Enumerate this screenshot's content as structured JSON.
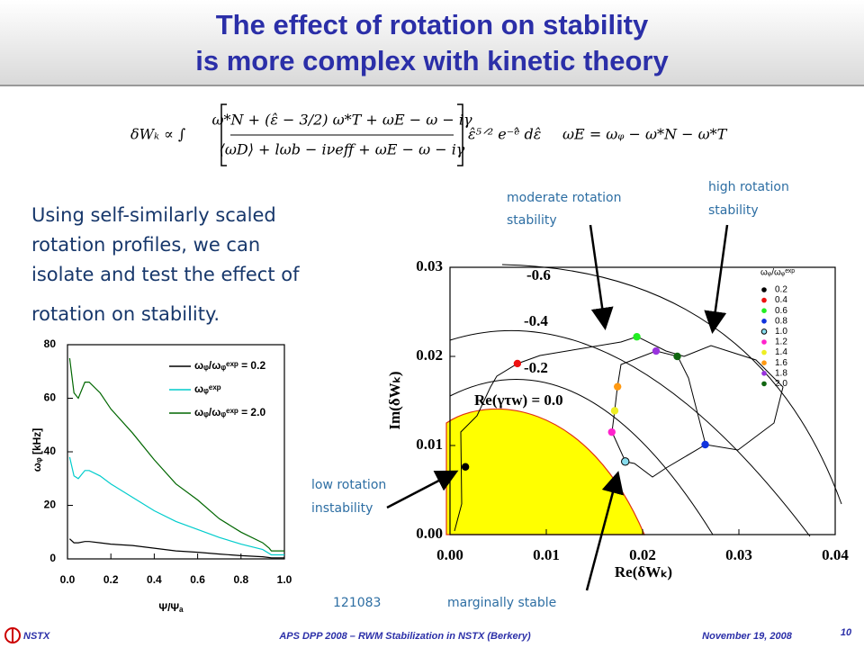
{
  "header": {
    "title_lines": [
      "The effect of rotation on stability",
      "is more complex with kinetic theory"
    ]
  },
  "equations": {
    "lhs": "δWₖ ∝ ∫",
    "numerator": "ω*N + (ε̂ − 3/2) ω*T + ωE − ω − iγ",
    "denominator": "⟨ωD⟩ + lωb − iνeff + ωE − ω − iγ",
    "tail": "ε̂⁵ᐟ² e⁻ᵉ̂ dε̂",
    "second": "ωE = ωᵩ − ω*N − ω*T"
  },
  "body_lines": [
    "Using self-similarly scaled",
    "rotation profiles, we can",
    "isolate and test the effect of",
    "rotation on stability."
  ],
  "annotations": {
    "moderate": [
      "moderate rotation",
      "stability"
    ],
    "high": [
      "high rotation",
      "stability"
    ],
    "low": [
      "low rotation",
      "instability"
    ],
    "marginal": "marginally stable",
    "shot": "121083"
  },
  "footer": {
    "logo": "NSTX",
    "center": "APS DPP 2008 – RWM Stabilization in NSTX (Berkery)",
    "date": "November 19, 2008",
    "page": "10"
  },
  "chart_data": [
    {
      "type": "line",
      "xlabel": "Ψ/Ψₐ",
      "ylabel": "ωᵩ [kHz]",
      "xlim": [
        0,
        1
      ],
      "ylim": [
        0,
        80
      ],
      "xticks": [
        {
          "value": 0,
          "label": "0.0"
        },
        0.2,
        0.4,
        0.6,
        0.8,
        {
          "value": 1,
          "label": "1.0"
        }
      ],
      "yticks": [
        0,
        20,
        40,
        60,
        80
      ],
      "series": [
        {
          "name": "ωᵩ/ωᵩᵉˣᵖ = 0.2",
          "color": "#000000",
          "x": [
            0.01,
            0.03,
            0.05,
            0.08,
            0.1,
            0.15,
            0.2,
            0.3,
            0.4,
            0.5,
            0.6,
            0.7,
            0.8,
            0.9,
            0.93,
            0.94,
            1.0
          ],
          "values": [
            7.5,
            6,
            6,
            6.5,
            6.5,
            6,
            5.5,
            5,
            4,
            3,
            2.5,
            1.8,
            1.2,
            0.8,
            0.5,
            0.4,
            0.4
          ]
        },
        {
          "name": "ωᵩᵉˣᵖ",
          "color": "#00cccc",
          "x": [
            0.01,
            0.03,
            0.05,
            0.08,
            0.1,
            0.15,
            0.2,
            0.3,
            0.4,
            0.5,
            0.6,
            0.7,
            0.8,
            0.9,
            0.93,
            0.94,
            1.0
          ],
          "values": [
            38,
            31,
            30,
            33,
            33,
            31,
            28,
            23,
            18,
            14,
            11,
            8,
            5.5,
            3.5,
            2,
            1.5,
            1.5
          ]
        },
        {
          "name": "ωᵩ/ωᵩᵉˣᵖ = 2.0",
          "color": "#006600",
          "x": [
            0.01,
            0.03,
            0.05,
            0.08,
            0.1,
            0.15,
            0.2,
            0.3,
            0.4,
            0.5,
            0.6,
            0.7,
            0.8,
            0.9,
            0.93,
            0.94,
            1.0
          ],
          "values": [
            75,
            62,
            60,
            66,
            66,
            62,
            56,
            47,
            37,
            28,
            22,
            15,
            10,
            6,
            4,
            3,
            3
          ]
        }
      ]
    },
    {
      "type": "scatter",
      "xlabel": "Re(δWₖ)",
      "ylabel": "Im(δWₖ)",
      "xlim": [
        0,
        0.04
      ],
      "ylim": [
        0,
        0.03
      ],
      "xticks": [
        {
          "value": 0,
          "label": "0.00"
        },
        0.01,
        0.02,
        0.03,
        0.04
      ],
      "yticks": [
        {
          "value": 0,
          "label": "0.00"
        },
        0.01,
        0.02,
        0.03
      ],
      "contour_labels": [
        "-0.6",
        "-0.4",
        "-0.2",
        "Re(γτw) = 0.0"
      ],
      "legend_title": "ωᵩ/ωᵩᵉˣᵖ",
      "series": [
        {
          "name": "0.2",
          "color": "#000000",
          "x": [
            0.0016
          ],
          "values": [
            0.0076
          ]
        },
        {
          "name": "0.4",
          "color": "#ee1111",
          "x": [
            0.007
          ],
          "values": [
            0.0192
          ]
        },
        {
          "name": "0.6",
          "color": "#22ee22",
          "x": [
            0.0194
          ],
          "values": [
            0.0222
          ]
        },
        {
          "name": "0.8",
          "color": "#1133dd",
          "x": [
            0.0265
          ],
          "values": [
            0.0101
          ]
        },
        {
          "name": "1.0",
          "color": "#88ddee",
          "x": [
            0.0182
          ],
          "values": [
            0.0082
          ]
        },
        {
          "name": "1.2",
          "color": "#ff22cc",
          "x": [
            0.0168
          ],
          "values": [
            0.0115
          ]
        },
        {
          "name": "1.4",
          "color": "#eeee22",
          "x": [
            0.0171
          ],
          "values": [
            0.0139
          ]
        },
        {
          "name": "1.6",
          "color": "#ff9911",
          "x": [
            0.0174
          ],
          "values": [
            0.0166
          ]
        },
        {
          "name": "1.8",
          "color": "#9933dd",
          "x": [
            0.0214
          ],
          "values": [
            0.0206
          ]
        },
        {
          "name": "2.0",
          "color": "#116611",
          "x": [
            0.0236
          ],
          "values": [
            0.02
          ]
        }
      ]
    }
  ]
}
